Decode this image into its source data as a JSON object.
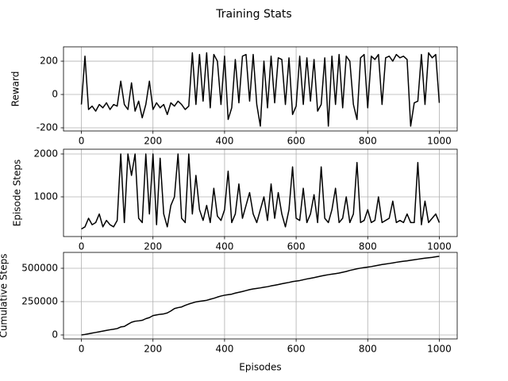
{
  "title": "Training Stats",
  "chart_data": [
    {
      "type": "line",
      "ylabel": "Reward",
      "grid": true,
      "color": "#000000",
      "xlim": [
        -50,
        1050
      ],
      "xticks": [
        0,
        200,
        400,
        600,
        800,
        1000
      ],
      "ylim": [
        -219,
        286
      ],
      "yticks": [
        -200,
        0,
        200
      ],
      "x": [
        0,
        10,
        20,
        30,
        40,
        50,
        60,
        70,
        80,
        90,
        100,
        110,
        120,
        130,
        140,
        150,
        160,
        170,
        180,
        190,
        200,
        210,
        220,
        230,
        240,
        250,
        260,
        270,
        280,
        290,
        300,
        310,
        320,
        330,
        340,
        350,
        360,
        370,
        380,
        390,
        400,
        410,
        420,
        430,
        440,
        450,
        460,
        470,
        480,
        490,
        500,
        510,
        520,
        530,
        540,
        550,
        560,
        570,
        580,
        590,
        600,
        610,
        620,
        630,
        640,
        650,
        660,
        670,
        680,
        690,
        700,
        710,
        720,
        730,
        740,
        750,
        760,
        770,
        780,
        790,
        800,
        810,
        820,
        830,
        840,
        850,
        860,
        870,
        880,
        890,
        900,
        910,
        920,
        930,
        940,
        950,
        960,
        970,
        980,
        990,
        1000
      ],
      "values": [
        -60,
        230,
        -90,
        -70,
        -100,
        -60,
        -80,
        -50,
        -90,
        -60,
        -70,
        80,
        -60,
        -90,
        70,
        -100,
        -40,
        -140,
        -60,
        80,
        -90,
        -50,
        -80,
        -60,
        -120,
        -50,
        -70,
        -40,
        -60,
        -90,
        -70,
        250,
        -60,
        240,
        -40,
        250,
        -80,
        240,
        200,
        -60,
        230,
        -150,
        -80,
        210,
        -50,
        230,
        240,
        -40,
        240,
        -60,
        -190,
        200,
        -80,
        230,
        -50,
        220,
        210,
        -60,
        220,
        -120,
        -70,
        230,
        -60,
        220,
        -40,
        210,
        -100,
        -60,
        220,
        -190,
        230,
        -60,
        240,
        -80,
        230,
        200,
        -60,
        -150,
        220,
        240,
        -80,
        230,
        210,
        240,
        -60,
        220,
        230,
        200,
        240,
        220,
        230,
        210,
        -190,
        -50,
        -40,
        240,
        -60,
        250,
        220,
        240,
        -50
      ]
    },
    {
      "type": "line",
      "ylabel": "Episode Steps",
      "grid": true,
      "color": "#000000",
      "xlim": [
        -50,
        1050
      ],
      "xticks": [
        0,
        200,
        400,
        600,
        800,
        1000
      ],
      "ylim": [
        74,
        2111
      ],
      "yticks": [
        1000,
        2000
      ],
      "x": [
        0,
        10,
        20,
        30,
        40,
        50,
        60,
        70,
        80,
        90,
        100,
        110,
        120,
        130,
        140,
        150,
        160,
        170,
        180,
        190,
        200,
        210,
        220,
        230,
        240,
        250,
        260,
        270,
        280,
        290,
        300,
        310,
        320,
        330,
        340,
        350,
        360,
        370,
        380,
        390,
        400,
        410,
        420,
        430,
        440,
        450,
        460,
        470,
        480,
        490,
        500,
        510,
        520,
        530,
        540,
        550,
        560,
        570,
        580,
        590,
        600,
        610,
        620,
        630,
        640,
        650,
        660,
        670,
        680,
        690,
        700,
        710,
        720,
        730,
        740,
        750,
        760,
        770,
        780,
        790,
        800,
        810,
        820,
        830,
        840,
        850,
        860,
        870,
        880,
        890,
        900,
        910,
        920,
        930,
        940,
        950,
        960,
        970,
        980,
        990,
        1000
      ],
      "values": [
        250,
        300,
        500,
        350,
        400,
        600,
        300,
        450,
        350,
        300,
        450,
        2000,
        400,
        2000,
        1500,
        2000,
        500,
        400,
        2000,
        600,
        2000,
        350,
        1900,
        600,
        300,
        800,
        1000,
        2000,
        500,
        400,
        2000,
        600,
        1500,
        700,
        450,
        800,
        400,
        1200,
        550,
        450,
        700,
        1600,
        400,
        600,
        1300,
        500,
        800,
        1100,
        600,
        400,
        700,
        1000,
        450,
        1300,
        500,
        1100,
        600,
        300,
        700,
        1700,
        500,
        450,
        1200,
        400,
        600,
        1050,
        400,
        1700,
        500,
        400,
        700,
        1200,
        400,
        500,
        1000,
        400,
        600,
        1800,
        400,
        450,
        700,
        400,
        450,
        1000,
        400,
        450,
        500,
        900,
        400,
        450,
        400,
        600,
        400,
        400,
        1800,
        350,
        900,
        400,
        500,
        600,
        400
      ]
    },
    {
      "type": "line",
      "ylabel": "Cumulative Steps",
      "xlabel": "Episodes",
      "grid": true,
      "color": "#000000",
      "xlim": [
        -50,
        1050
      ],
      "xticks": [
        0,
        200,
        400,
        600,
        800,
        1000
      ],
      "ylim": [
        -29800,
        619000
      ],
      "yticks": [
        0,
        250000,
        500000
      ],
      "x": [
        0,
        10,
        20,
        30,
        40,
        50,
        60,
        70,
        80,
        90,
        100,
        110,
        120,
        130,
        140,
        150,
        160,
        170,
        180,
        190,
        200,
        210,
        220,
        230,
        240,
        250,
        260,
        270,
        280,
        290,
        300,
        310,
        320,
        330,
        340,
        350,
        360,
        370,
        380,
        390,
        400,
        410,
        420,
        430,
        440,
        450,
        460,
        470,
        480,
        490,
        500,
        510,
        520,
        530,
        540,
        550,
        560,
        570,
        580,
        590,
        600,
        610,
        620,
        630,
        640,
        650,
        660,
        670,
        680,
        690,
        700,
        710,
        720,
        730,
        740,
        750,
        760,
        770,
        780,
        790,
        800,
        810,
        820,
        830,
        840,
        850,
        860,
        870,
        880,
        890,
        900,
        910,
        920,
        930,
        940,
        950,
        960,
        970,
        980,
        990,
        1000
      ],
      "values": [
        0,
        4000,
        9000,
        14000,
        19000,
        24000,
        29000,
        34000,
        39000,
        43000,
        48000,
        60000,
        64000,
        80000,
        95000,
        103000,
        106000,
        110000,
        122000,
        130000,
        145000,
        150000,
        155000,
        158000,
        165000,
        180000,
        198000,
        205000,
        210000,
        222000,
        232000,
        240000,
        248000,
        252000,
        256000,
        260000,
        268000,
        275000,
        284000,
        292000,
        298000,
        302000,
        306000,
        314000,
        320000,
        326000,
        333000,
        340000,
        345000,
        349000,
        353000,
        358000,
        362000,
        368000,
        373000,
        378000,
        384000,
        389000,
        394000,
        400000,
        404000,
        408000,
        414000,
        420000,
        425000,
        430000,
        436000,
        442000,
        447000,
        452000,
        456000,
        460000,
        464000,
        470000,
        476000,
        484000,
        490000,
        496000,
        501000,
        505000,
        509000,
        513000,
        518000,
        523000,
        528000,
        532000,
        536000,
        540000,
        545000,
        549000,
        553000,
        556000,
        560000,
        564000,
        568000,
        572000,
        576000,
        579000,
        582000,
        586000,
        590000
      ]
    }
  ]
}
